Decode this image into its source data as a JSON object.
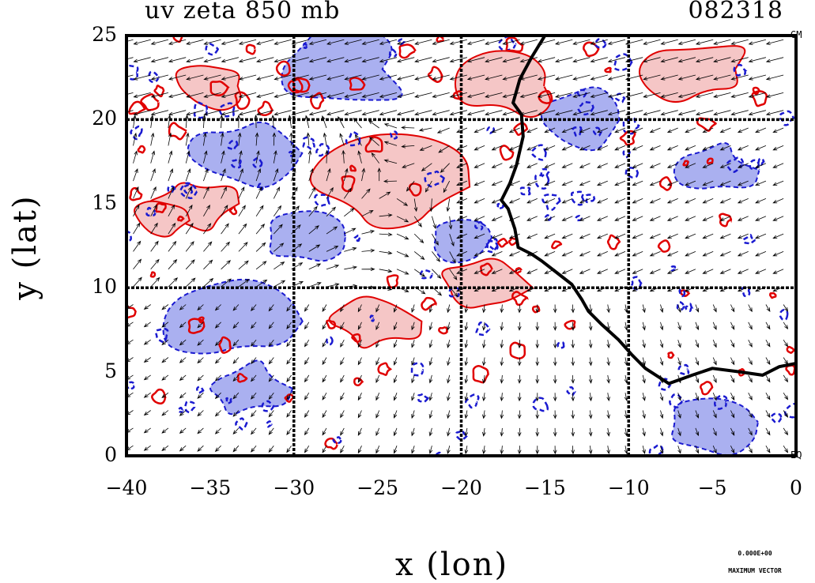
{
  "title_left": "uv zeta 850 mb",
  "title_right": "082318",
  "xlabel": "x (lon)",
  "ylabel": "y (lat)",
  "corner_top": "GM",
  "corner_bottom": "EQ",
  "ref_vector_value": "0.000E+00",
  "ref_vector_label": "MAXIMUM VECTOR",
  "map": {
    "lon_range": [
      -40,
      0
    ],
    "lat_range": [
      0,
      25
    ],
    "grid_lon": [
      -30,
      -20,
      -10
    ],
    "grid_lat": [
      10,
      20
    ],
    "positive_vorticity_color": "#f5c6c6",
    "positive_contour_color": "#e00000",
    "negative_vorticity_color": "#aab0f0",
    "negative_contour_color": "#1a1ad0",
    "coastline_color": "#000000",
    "vector_color": "#000000"
  },
  "x_ticks": [
    {
      "value": -40,
      "label": "−40"
    },
    {
      "value": -35,
      "label": "−35"
    },
    {
      "value": -30,
      "label": "−30"
    },
    {
      "value": -25,
      "label": "−25"
    },
    {
      "value": -20,
      "label": "−20"
    },
    {
      "value": -15,
      "label": "−15"
    },
    {
      "value": -10,
      "label": "−10"
    },
    {
      "value": -5,
      "label": "−5"
    },
    {
      "value": 0,
      "label": "0"
    }
  ],
  "y_ticks": [
    {
      "value": 0,
      "label": "0"
    },
    {
      "value": 5,
      "label": "5"
    },
    {
      "value": 10,
      "label": "10"
    },
    {
      "value": 15,
      "label": "15"
    },
    {
      "value": 20,
      "label": "20"
    },
    {
      "value": 25,
      "label": "25"
    }
  ],
  "coastline": [
    [
      -15.0,
      25.0
    ],
    [
      -15.8,
      23.7
    ],
    [
      -16.5,
      22.4
    ],
    [
      -16.9,
      21.0
    ],
    [
      -16.4,
      20.3
    ],
    [
      -16.3,
      19.0
    ],
    [
      -16.7,
      17.3
    ],
    [
      -17.1,
      16.2
    ],
    [
      -17.6,
      15.2
    ],
    [
      -17.2,
      14.7
    ],
    [
      -16.8,
      13.5
    ],
    [
      -16.6,
      12.4
    ],
    [
      -15.8,
      12.0
    ],
    [
      -15.2,
      11.6
    ],
    [
      -14.3,
      10.9
    ],
    [
      -13.4,
      10.2
    ],
    [
      -12.8,
      9.3
    ],
    [
      -12.4,
      8.6
    ],
    [
      -11.6,
      7.8
    ],
    [
      -10.6,
      6.9
    ],
    [
      -9.8,
      6.0
    ],
    [
      -9.0,
      5.2
    ],
    [
      -7.6,
      4.3
    ],
    [
      -6.2,
      4.8
    ],
    [
      -5.0,
      5.2
    ],
    [
      -3.4,
      5.0
    ],
    [
      -2.0,
      4.8
    ],
    [
      -1.0,
      5.3
    ],
    [
      0.0,
      5.5
    ]
  ]
}
